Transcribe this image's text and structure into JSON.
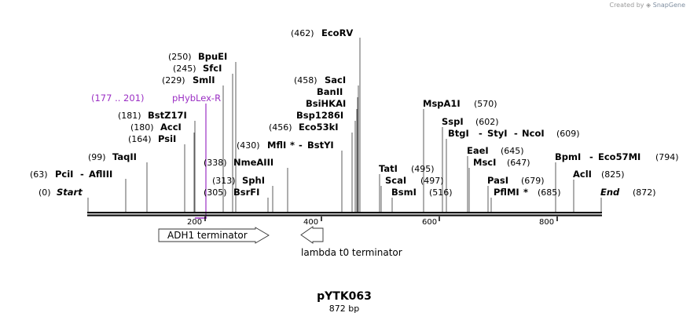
{
  "credit": {
    "prefix": "Created by",
    "brand": "SnapGene"
  },
  "plasmid": {
    "name": "pYTK063",
    "length_label": "872 bp",
    "length_bp": 872
  },
  "axis": {
    "ticks": [
      200,
      400,
      600,
      800
    ]
  },
  "features": [
    {
      "label": "ADH1 terminator",
      "direction": "forward",
      "start": 120,
      "end": 300
    },
    {
      "label": "lambda t0 terminator",
      "direction": "reverse",
      "start": 360,
      "end": 395
    }
  ],
  "primer": {
    "range": "(177 .. 201)",
    "name": "pHybLex-R",
    "start": 177,
    "end": 201
  },
  "sites": [
    {
      "id": "start",
      "pos": "(0)",
      "name": "Start",
      "italic": true,
      "bp": 0
    },
    {
      "id": "pcii",
      "pos": "(63)",
      "name": "PciI",
      "extra": "AflIII",
      "bp": 63
    },
    {
      "id": "taqii",
      "pos": "(99)",
      "name": "TaqII",
      "bp": 99
    },
    {
      "id": "psii",
      "pos": "(164)",
      "name": "PsiI",
      "bp": 164
    },
    {
      "id": "acci",
      "pos": "(180)",
      "name": "AccI",
      "bp": 180
    },
    {
      "id": "bstz17i",
      "pos": "(181)",
      "name": "BstZ17I",
      "bp": 181
    },
    {
      "id": "smli",
      "pos": "(229)",
      "name": "SmlI",
      "bp": 229
    },
    {
      "id": "sfci",
      "pos": "(245)",
      "name": "SfcI",
      "bp": 245
    },
    {
      "id": "bpuei",
      "pos": "(250)",
      "name": "BpuEI",
      "bp": 250
    },
    {
      "id": "bsrfi",
      "pos": "(305)",
      "name": "BsrFI",
      "bp": 305
    },
    {
      "id": "sphi",
      "pos": "(313)",
      "name": "SphI",
      "bp": 313
    },
    {
      "id": "nmeaiii",
      "pos": "(338)",
      "name": "NmeAIII",
      "bp": 338
    },
    {
      "id": "mfli",
      "pos": "(430)",
      "name": "MflI",
      "star": "*",
      "extra": "BstYI",
      "bp": 430
    },
    {
      "id": "eco53ki",
      "pos": "(456)",
      "name": "Eco53kI",
      "bp": 456
    },
    {
      "id": "bsp1286i",
      "name": "Bsp1286I",
      "bp": 458
    },
    {
      "id": "bsihkai",
      "name": "BsiHKAI",
      "bp": 458
    },
    {
      "id": "banii",
      "name": "BanII",
      "bp": 458
    },
    {
      "id": "saci",
      "pos": "(458)",
      "name": "SacI",
      "bp": 458
    },
    {
      "id": "ecorv",
      "pos": "(462)",
      "name": "EcoRV",
      "bp": 462
    },
    {
      "id": "tati",
      "pos": "(495)",
      "name": "TatI",
      "bp": 495
    },
    {
      "id": "scai",
      "pos": "(497)",
      "name": "ScaI",
      "bp": 497
    },
    {
      "id": "bsmi",
      "pos": "(516)",
      "name": "BsmI",
      "bp": 516
    },
    {
      "id": "mspa1i",
      "pos": "(570)",
      "name": "MspA1I",
      "bp": 570
    },
    {
      "id": "sspi",
      "pos": "(602)",
      "name": "SspI",
      "bp": 602
    },
    {
      "id": "btgi",
      "pos": "(609)",
      "name": "BtgI",
      "extra": "StyI",
      "extra2": "NcoI",
      "bp": 609
    },
    {
      "id": "eaei",
      "pos": "(645)",
      "name": "EaeI",
      "bp": 645
    },
    {
      "id": "msci",
      "pos": "(647)",
      "name": "MscI",
      "bp": 647
    },
    {
      "id": "pasi",
      "pos": "(679)",
      "name": "PasI",
      "bp": 679
    },
    {
      "id": "pflmi",
      "pos": "(685)",
      "name": "PflMI",
      "star": "*",
      "bp": 685
    },
    {
      "id": "bpmi",
      "pos": "(794)",
      "name": "BpmI",
      "extra": "Eco57MI",
      "bp": 794
    },
    {
      "id": "acli",
      "pos": "(825)",
      "name": "AclI",
      "bp": 825
    },
    {
      "id": "end",
      "pos": "(872)",
      "name": "End",
      "italic": true,
      "bp": 872
    }
  ]
}
